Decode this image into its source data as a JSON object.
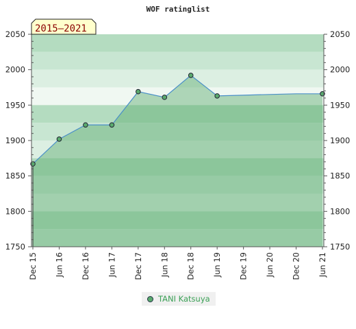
{
  "chart_data": {
    "type": "area",
    "title": "WOF ratinglist",
    "badge": "2015–2021",
    "x_labels": [
      "Dec 15",
      "Jun 16",
      "Dec 16",
      "Jun 17",
      "Dec 17",
      "Jun 18",
      "Dec 18",
      "Jun 19",
      "Dec 19",
      "Jun 20",
      "Dec 20",
      "Jun 21"
    ],
    "ylim": [
      1750,
      2050
    ],
    "y_ticks": [
      1750,
      1800,
      1850,
      1900,
      1950,
      2000,
      2050
    ],
    "series": [
      {
        "name": "TANI Katsuya",
        "color": "#5aaa6e",
        "line_color": "#4a8fc8",
        "points": [
          {
            "x": 0,
            "y": 1867
          },
          {
            "x": 1,
            "y": 1902
          },
          {
            "x": 2,
            "y": 1922
          },
          {
            "x": 3,
            "y": 1922
          },
          {
            "x": 4,
            "y": 1969
          },
          {
            "x": 5,
            "y": 1961
          },
          {
            "x": 6,
            "y": 1992
          },
          {
            "x": 7,
            "y": 1963
          },
          {
            "x": 11,
            "y": 1966
          }
        ],
        "line_end": [
          {
            "x": 8,
            "y": 1964
          },
          {
            "x": 9,
            "y": 1965
          },
          {
            "x": 10,
            "y": 1966
          }
        ]
      }
    ],
    "legend": "bottom-center",
    "grid": true
  }
}
